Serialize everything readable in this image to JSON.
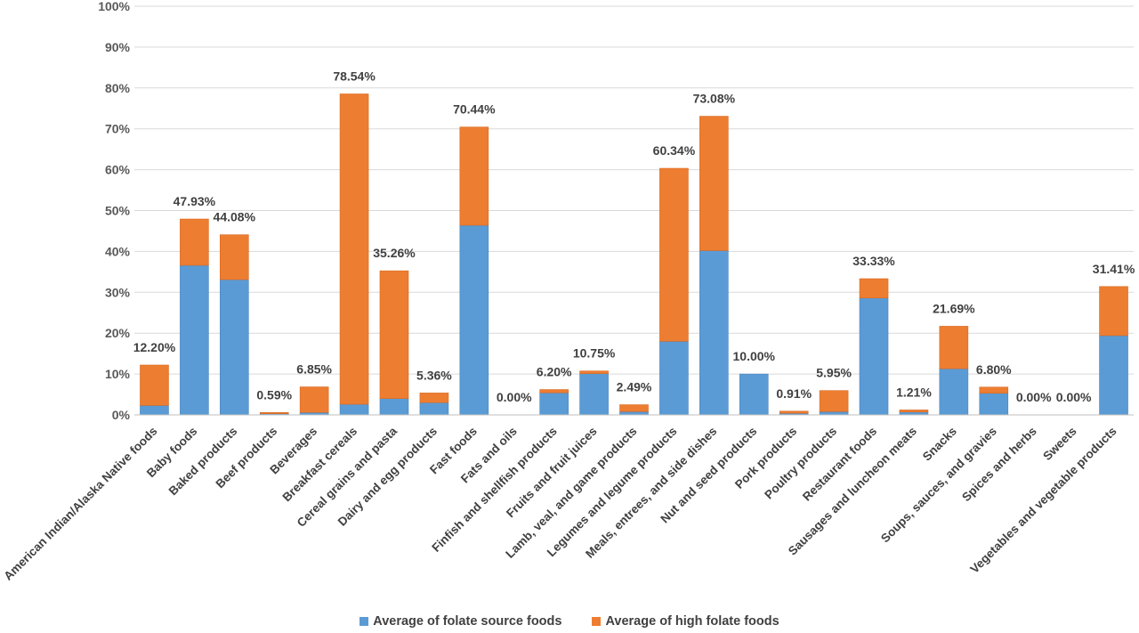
{
  "chart_data": {
    "type": "bar",
    "stacked": true,
    "ylim": [
      0,
      100
    ],
    "y_ticks": [
      "0%",
      "10%",
      "20%",
      "30%",
      "40%",
      "50%",
      "60%",
      "70%",
      "80%",
      "90%",
      "100%"
    ],
    "grid": true,
    "legend_position": "bottom",
    "categories": [
      "American Indian/Alaska Native foods",
      "Baby foods",
      "Baked products",
      "Beef products",
      "Beverages",
      "Breakfast cereals",
      "Cereal grains and pasta",
      "Dairy and egg products",
      "Fast foods",
      "Fats and oils",
      "Finfish and shellfish products",
      "Fruits and fruit juices",
      "Lamb, veal, and game products",
      "Legumes and legume products",
      "Meals, entrees, and side dishes",
      "Nut and seed products",
      "Pork products",
      "Poultry products",
      "Restaurant foods",
      "Sausages and luncheon meats",
      "Snacks",
      "Soups, sauces, and gravies",
      "Spices and herbs",
      "Sweets",
      "Vegetables and vegetable products"
    ],
    "series": [
      {
        "name": "Average of folate source foods",
        "color": "#5b9bd5",
        "values": [
          2.3,
          36.6,
          33.1,
          0.3,
          0.6,
          2.6,
          4.0,
          3.0,
          46.4,
          0,
          5.4,
          10.1,
          0.8,
          18.0,
          40.2,
          10.0,
          0.4,
          0.8,
          28.6,
          0.7,
          11.3,
          5.3,
          0,
          0,
          19.4
        ]
      },
      {
        "name": "Average of high folate foods",
        "color": "#ed7d31",
        "values": [
          9.9,
          11.33,
          10.98,
          0.29,
          6.25,
          75.94,
          31.26,
          2.36,
          24.04,
          0,
          0.8,
          0.65,
          1.69,
          42.34,
          32.88,
          0,
          0.51,
          5.15,
          4.73,
          0.51,
          10.39,
          1.5,
          0,
          0,
          12.01
        ]
      }
    ],
    "total_labels": [
      "12.20%",
      "47.93%",
      "44.08%",
      "0.59%",
      "6.85%",
      "78.54%",
      "35.26%",
      "5.36%",
      "70.44%",
      "0.00%",
      "6.20%",
      "10.75%",
      "2.49%",
      "60.34%",
      "73.08%",
      "10.00%",
      "0.91%",
      "5.95%",
      "33.33%",
      "1.21%",
      "21.69%",
      "6.80%",
      "0.00%",
      "0.00%",
      "31.41%"
    ],
    "totals": [
      12.2,
      47.93,
      44.08,
      0.59,
      6.85,
      78.54,
      35.26,
      5.36,
      70.44,
      0.0,
      6.2,
      10.75,
      2.49,
      60.34,
      73.08,
      10.0,
      0.91,
      5.95,
      33.33,
      1.21,
      21.69,
      6.8,
      0.0,
      0.0,
      31.41
    ]
  },
  "legend": {
    "series1_label": "Average of folate source foods",
    "series2_label": "Average of high folate foods"
  }
}
